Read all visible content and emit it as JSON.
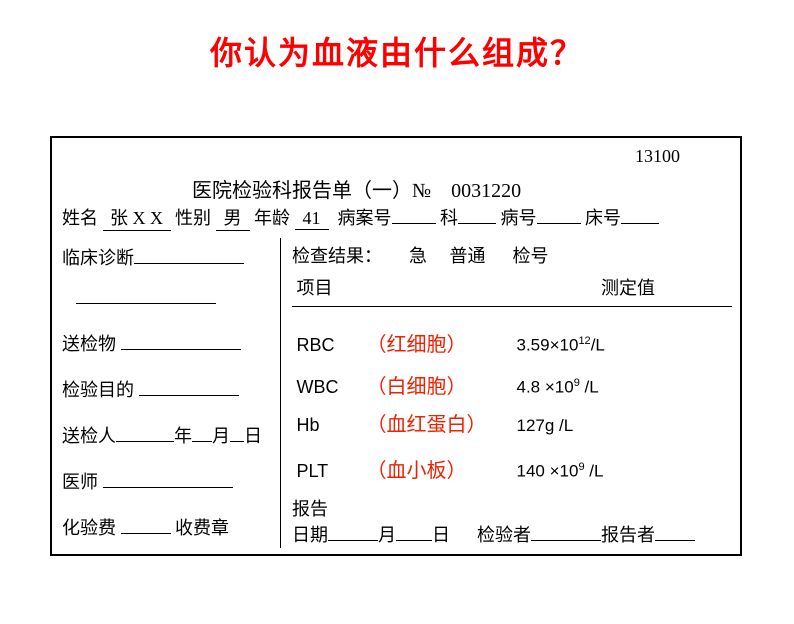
{
  "title": "你认为血液由什么组成？",
  "topNumber": "13100",
  "reportHeader": "医院检验科报告单（一）№",
  "reportNo": "0031220",
  "labels": {
    "name": "姓名",
    "gender": "性别",
    "age": "年龄",
    "caseNo": "病案号",
    "dept": "科",
    "illNo": "病号",
    "bedNo": "床号",
    "clinical": "临床诊断",
    "specimen": "送检物",
    "purpose": "检验目的",
    "sender": "送检人",
    "year": "年",
    "month": "月",
    "day": "日",
    "doctor": "医师",
    "fee": "化验费",
    "stamp": "收费章",
    "results": "检查结果：",
    "urgent": "急",
    "normal": "普通",
    "checkNo": "检号",
    "item": "项目",
    "measured": "测定值",
    "reportDate": "报告",
    "date": "日期",
    "inspector": "检验者",
    "reporter": "报告者"
  },
  "patient": {
    "name": "张 X X",
    "gender": "男",
    "age": "41"
  },
  "tests": [
    {
      "code": "RBC",
      "cn": "（红细胞）",
      "valueHtml": "3.59×10<sup>12</sup>/L"
    },
    {
      "code": "WBC",
      "cn": "（白细胞）",
      "valueHtml": "4.8 ×10<sup>9</sup> /L"
    },
    {
      "code": "Hb",
      "cn": "（血红蛋白）",
      "valueHtml": "127g /L"
    },
    {
      "code": "PLT",
      "cn": "（血小板）",
      "valueHtml": "140 ×10<sup>9</sup> /L"
    }
  ]
}
